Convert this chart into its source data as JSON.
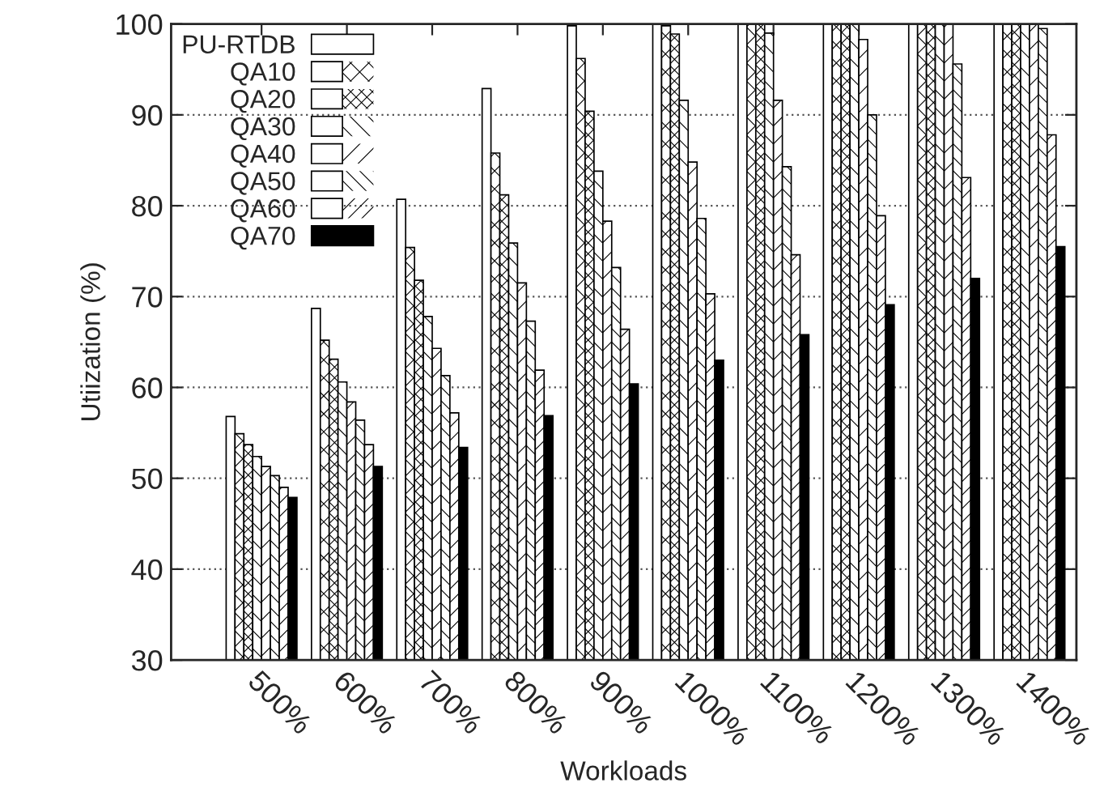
{
  "chart_data": {
    "type": "bar",
    "xlabel": "Workloads",
    "ylabel": "Utiization (%)",
    "categories": [
      "500%",
      "600%",
      "700%",
      "800%",
      "900%",
      "1000%",
      "1100%",
      "1200%",
      "1300%",
      "1400%"
    ],
    "series": [
      {
        "name": "PU-RTDB",
        "color": "#ffffff",
        "values": [
          56.8,
          68.7,
          80.7,
          92.9,
          99.8,
          100,
          100,
          100,
          100,
          100
        ]
      },
      {
        "name": "QA10",
        "color": "#ffffff",
        "values": [
          54.9,
          65.2,
          75.4,
          85.8,
          96.2,
          99.8,
          100,
          100,
          100,
          100
        ]
      },
      {
        "name": "QA20",
        "color": "#ffffff",
        "values": [
          53.7,
          63.1,
          71.8,
          81.2,
          90.4,
          98.9,
          100,
          100,
          100,
          100
        ]
      },
      {
        "name": "QA30",
        "color": "#ffffff",
        "values": [
          52.4,
          60.6,
          67.8,
          75.9,
          83.8,
          91.6,
          99.0,
          100,
          100,
          100
        ]
      },
      {
        "name": "QA40",
        "color": "#ffffff",
        "values": [
          51.3,
          58.4,
          64.3,
          71.5,
          78.3,
          84.8,
          91.6,
          98.3,
          100,
          100
        ]
      },
      {
        "name": "QA50",
        "color": "#ffffff",
        "values": [
          50.3,
          56.4,
          61.3,
          67.3,
          73.2,
          78.6,
          84.3,
          90.0,
          95.6,
          99.5
        ]
      },
      {
        "name": "QA60",
        "color": "#ffffff",
        "values": [
          49.0,
          53.7,
          57.2,
          61.9,
          66.4,
          70.3,
          74.6,
          78.9,
          83.1,
          87.8
        ]
      },
      {
        "name": "QA70",
        "color": "#000000",
        "values": [
          47.9,
          51.3,
          53.4,
          56.9,
          60.4,
          63.0,
          65.8,
          69.1,
          72.0,
          75.5
        ]
      }
    ],
    "ylim": [
      30,
      100
    ],
    "yticks": [
      30,
      40,
      50,
      60,
      70,
      80,
      90,
      100
    ],
    "grid": "y",
    "legend": "top left"
  }
}
